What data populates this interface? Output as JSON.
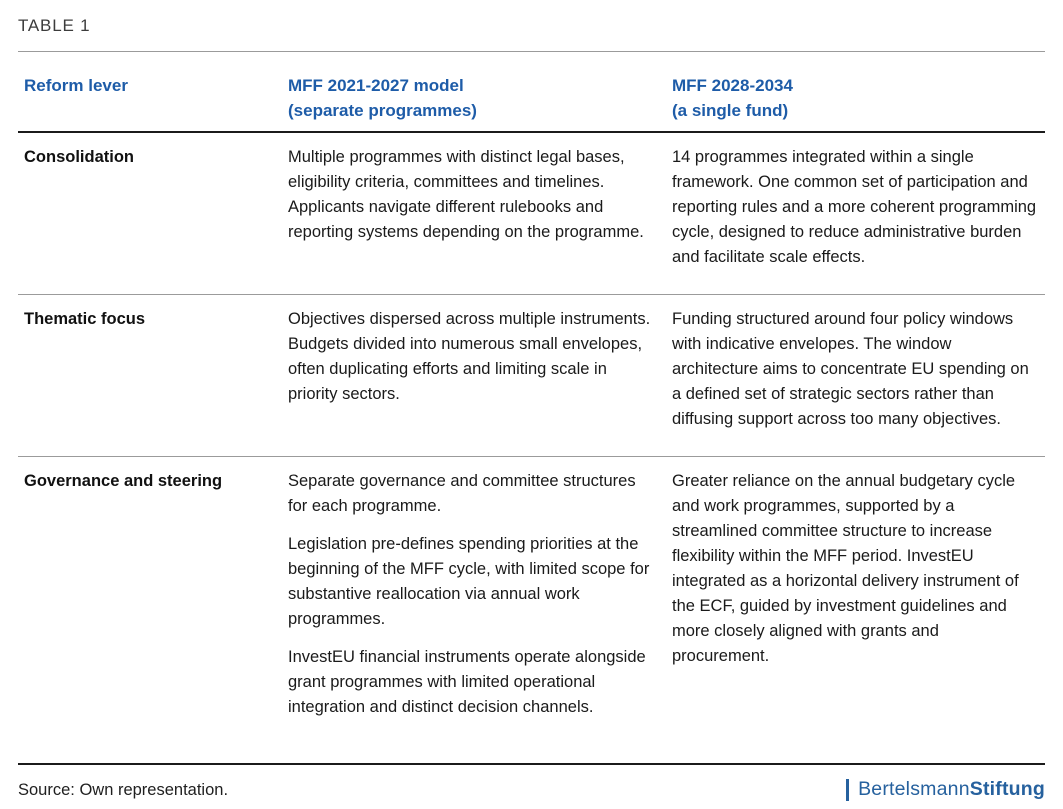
{
  "page": {
    "table_label": "TABLE 1"
  },
  "colors": {
    "header_blue": "#1e5ca8",
    "logo_blue": "#26619e",
    "body_text": "#1a1a1a",
    "rule_gray": "#9b9b9b",
    "rule_dark": "#1b1b1b"
  },
  "table": {
    "columns": [
      {
        "label": "Reform lever",
        "sublabel": ""
      },
      {
        "label": "MFF 2021-2027 model",
        "sublabel": "(separate programmes)"
      },
      {
        "label": "MFF 2028-2034",
        "sublabel": "(a single fund)"
      }
    ],
    "rows": [
      {
        "lever": "Consolidation",
        "model_2021": [
          "Multiple programmes with distinct legal bases, eligibility criteria, committees and timelines. Applicants navigate different rulebooks and reporting systems depending on the programme."
        ],
        "model_2028": [
          "14 programmes integrated within a single framework. One common set of participation and reporting rules and a more coherent programming cycle, designed to reduce administrative burden and facilitate scale effects."
        ]
      },
      {
        "lever": "Thematic focus",
        "model_2021": [
          "Objectives dispersed across multiple instruments. Budgets divided into numerous small envelopes, often duplicating efforts and limiting scale in priority sectors."
        ],
        "model_2028": [
          "Funding structured around four policy windows with indicative envelopes. The window architecture aims to concentrate EU spending on a defined set of strategic sectors rather than diffusing support across too many objectives."
        ]
      },
      {
        "lever": "Governance and steering",
        "model_2021": [
          "Separate governance and committee structures for each programme.",
          "Legislation pre-defines spending priorities at the beginning of the MFF cycle, with limited scope for substantive reallocation via annual work programmes.",
          "InvestEU financial instruments operate alongside grant programmes with limited operational integration and distinct decision channels."
        ],
        "model_2028": [
          "Greater reliance on the annual budgetary cycle and work programmes, supported by a streamlined committee structure to increase flexibility within the MFF period. InvestEU integrated as a horizontal delivery instrument of the ECF, guided by investment guidelines and more closely aligned with grants and procurement."
        ]
      }
    ]
  },
  "footer": {
    "source_text": "Source: Own representation.",
    "logo_regular": "Bertelsmann",
    "logo_bold": "Stiftung"
  }
}
